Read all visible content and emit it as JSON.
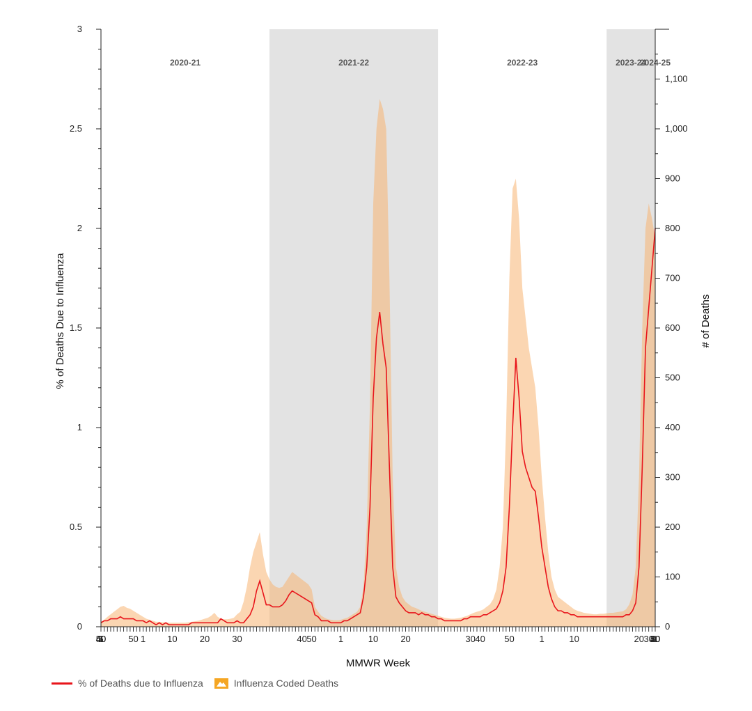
{
  "chart_data": {
    "type": "area",
    "title": "",
    "xlabel": "MMWR Week",
    "ylabel_left": "% of Deaths Due to Influenza",
    "ylabel_right": "# of Deaths",
    "ylim_left": [
      0,
      3
    ],
    "ylim_right": [
      0,
      1200
    ],
    "yticks_left": [
      "0",
      "0.5",
      "1",
      "1.5",
      "2",
      "2.5",
      "3"
    ],
    "yticks_right": [
      "0",
      "100",
      "200",
      "300",
      "400",
      "500",
      "600",
      "700",
      "800",
      "900",
      "1,000",
      "1,100"
    ],
    "x_tick_labels": [
      "40",
      "50",
      "1",
      "10",
      "20",
      "30",
      "40",
      "50",
      "1",
      "10",
      "20",
      "30",
      "40",
      "50",
      "1",
      "10",
      "20",
      "30",
      "40",
      "50",
      "1",
      "10",
      "20",
      "30",
      "40",
      "50",
      "1",
      "5"
    ],
    "seasons": [
      {
        "label": "2020-21",
        "shaded": false
      },
      {
        "label": "2021-22",
        "shaded": true
      },
      {
        "label": "2022-23",
        "shaded": false
      },
      {
        "label": "2023-24",
        "shaded": true
      },
      {
        "label": "2024-25",
        "shaded": false
      }
    ],
    "legend_position": "bottom-left",
    "colors": {
      "line": "#e8151b",
      "area": "#fbd3a8",
      "area_dark": "#f5a623",
      "shade": "#e3e3e3"
    },
    "series": [
      {
        "name": "% of Deaths due to Influenza",
        "axis": "left",
        "values": [
          0.02,
          0.03,
          0.03,
          0.04,
          0.04,
          0.04,
          0.05,
          0.04,
          0.04,
          0.04,
          0.04,
          0.03,
          0.03,
          0.03,
          0.02,
          0.03,
          0.02,
          0.01,
          0.02,
          0.01,
          0.02,
          0.01,
          0.01,
          0.01,
          0.01,
          0.01,
          0.01,
          0.01,
          0.02,
          0.02,
          0.02,
          0.02,
          0.02,
          0.02,
          0.02,
          0.02,
          0.02,
          0.04,
          0.03,
          0.02,
          0.02,
          0.02,
          0.03,
          0.02,
          0.02,
          0.04,
          0.06,
          0.1,
          0.18,
          0.23,
          0.17,
          0.11,
          0.11,
          0.1,
          0.1,
          0.1,
          0.11,
          0.13,
          0.16,
          0.18,
          0.17,
          0.16,
          0.15,
          0.14,
          0.13,
          0.12,
          0.06,
          0.05,
          0.03,
          0.03,
          0.03,
          0.02,
          0.02,
          0.02,
          0.02,
          0.03,
          0.03,
          0.04,
          0.05,
          0.06,
          0.07,
          0.15,
          0.3,
          0.6,
          1.15,
          1.45,
          1.58,
          1.42,
          1.3,
          0.8,
          0.3,
          0.15,
          0.12,
          0.1,
          0.08,
          0.07,
          0.07,
          0.07,
          0.06,
          0.07,
          0.06,
          0.06,
          0.05,
          0.05,
          0.04,
          0.04,
          0.03,
          0.03,
          0.03,
          0.03,
          0.03,
          0.03,
          0.04,
          0.04,
          0.05,
          0.05,
          0.05,
          0.05,
          0.06,
          0.06,
          0.07,
          0.08,
          0.09,
          0.12,
          0.18,
          0.3,
          0.6,
          1.0,
          1.35,
          1.15,
          0.88,
          0.8,
          0.75,
          0.7,
          0.68,
          0.55,
          0.4,
          0.3,
          0.2,
          0.14,
          0.1,
          0.08,
          0.08,
          0.07,
          0.07,
          0.06,
          0.06,
          0.05,
          0.05,
          0.05,
          0.05,
          0.05,
          0.05,
          0.05,
          0.05,
          0.05,
          0.05,
          0.05,
          0.05,
          0.05,
          0.05,
          0.05,
          0.06,
          0.06,
          0.08,
          0.12,
          0.3,
          0.8,
          1.4,
          1.6,
          1.8,
          2.0
        ]
      },
      {
        "name": "Influenza Coded Deaths",
        "axis": "right",
        "values": [
          10,
          14,
          20,
          25,
          30,
          35,
          40,
          42,
          38,
          36,
          32,
          28,
          24,
          20,
          16,
          14,
          12,
          10,
          10,
          9,
          9,
          8,
          8,
          8,
          8,
          8,
          8,
          9,
          10,
          11,
          12,
          14,
          16,
          18,
          22,
          28,
          20,
          16,
          15,
          15,
          16,
          18,
          25,
          30,
          50,
          80,
          120,
          150,
          170,
          190,
          145,
          110,
          95,
          85,
          80,
          78,
          80,
          90,
          100,
          110,
          105,
          100,
          95,
          90,
          85,
          75,
          40,
          30,
          22,
          18,
          15,
          14,
          13,
          13,
          14,
          16,
          18,
          22,
          26,
          30,
          40,
          80,
          200,
          450,
          850,
          1000,
          1060,
          1040,
          1000,
          700,
          300,
          120,
          80,
          60,
          50,
          45,
          40,
          38,
          35,
          32,
          30,
          28,
          26,
          24,
          22,
          20,
          18,
          17,
          16,
          16,
          17,
          18,
          20,
          22,
          25,
          28,
          30,
          32,
          35,
          40,
          45,
          55,
          75,
          120,
          200,
          400,
          700,
          880,
          900,
          820,
          680,
          620,
          560,
          520,
          480,
          400,
          300,
          220,
          150,
          100,
          75,
          60,
          55,
          50,
          45,
          40,
          35,
          32,
          30,
          28,
          27,
          26,
          25,
          25,
          26,
          26,
          27,
          28,
          28,
          29,
          30,
          31,
          35,
          45,
          65,
          120,
          300,
          600,
          800,
          850,
          820,
          780
        ]
      }
    ]
  },
  "legend": {
    "line_label": "% of Deaths due to Influenza",
    "area_label": "Influenza Coded Deaths"
  }
}
